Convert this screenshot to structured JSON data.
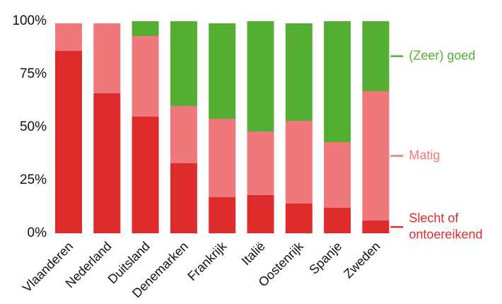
{
  "chart_data": {
    "type": "bar",
    "stacked": true,
    "percent": true,
    "categories": [
      "Vlaanderen",
      "Nederland",
      "Duitsland",
      "Denemarken",
      "Frankrijk",
      "Italië",
      "Oostenrijk",
      "Spanje",
      "Zweden"
    ],
    "series": [
      {
        "name": "Slecht of ontoereikend",
        "color": "#de2c2c",
        "values": [
          86,
          66,
          55,
          33,
          17,
          18,
          14,
          12,
          6
        ]
      },
      {
        "name": "Matig",
        "color": "#f0787b",
        "values": [
          13,
          33,
          38,
          27,
          37,
          30,
          39,
          31,
          61
        ]
      },
      {
        "name": "(Zeer) goed",
        "color": "#54ae32",
        "values": [
          0,
          0,
          7,
          40,
          45,
          52,
          46,
          57,
          33
        ]
      }
    ],
    "ylim": [
      0,
      100
    ],
    "yticks": [
      "0%",
      "25%",
      "50%",
      "75%",
      "100%"
    ],
    "legend_position": "right"
  }
}
